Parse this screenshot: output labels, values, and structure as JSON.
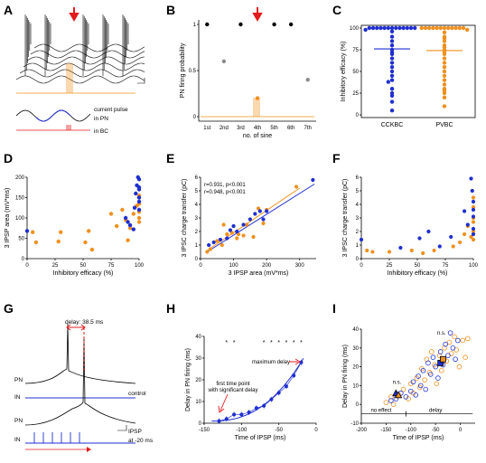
{
  "colors": {
    "blue": "#1f2fd0",
    "orange": "#f0901e",
    "red": "#e31a1c",
    "gray": "#8c8c8c",
    "black": "#000000"
  },
  "panels": {
    "A": "A",
    "B": "B",
    "C": "C",
    "D": "D",
    "E": "E",
    "F": "F",
    "G": "G",
    "H": "H",
    "I": "I"
  },
  "panelA": {
    "label_current": "current pulse",
    "label_pn": "in PN",
    "label_bc": "in BC"
  },
  "panelG": {
    "delay_label": "delay: 38.5 ms",
    "pn1": "PN",
    "in1": "IN",
    "control": "control",
    "pn2": "PN",
    "in2": "IN",
    "ipsp": "IPSP",
    "ipsp_time": "at -20 ms"
  },
  "chart_data": [
    {
      "id": "B",
      "type": "scatter",
      "ylabel": "PN firing probability",
      "xlabel": "no. of sine",
      "categories": [
        "1st",
        "2nd",
        "3rd",
        "4th",
        "5th",
        "6th",
        "7th"
      ],
      "values": [
        1.0,
        0.6,
        1.0,
        0.2,
        1.0,
        1.0,
        0.4
      ],
      "ylim": [
        0,
        1
      ],
      "yticks": [
        "0",
        "0.5",
        "1"
      ]
    },
    {
      "id": "C",
      "type": "scatter",
      "ylabel": "Inhibitory efficacy (%)",
      "categories": [
        "CCKBC",
        "PVBC"
      ],
      "ylim": [
        0,
        100
      ],
      "yticks": [
        "0",
        "25",
        "50",
        "75",
        "100"
      ],
      "series": [
        {
          "name": "CCKBC",
          "mean": 76,
          "values": [
            100,
            100,
            100,
            100,
            100,
            100,
            100,
            100,
            100,
            100,
            100,
            100,
            100,
            98,
            96,
            90,
            85,
            80,
            75,
            72,
            70,
            65,
            60,
            55,
            50,
            45,
            40,
            38,
            30,
            25,
            22,
            15,
            5
          ]
        },
        {
          "name": "PVBC",
          "mean": 74,
          "values": [
            100,
            100,
            100,
            100,
            100,
            100,
            100,
            100,
            100,
            100,
            100,
            100,
            98,
            95,
            90,
            88,
            85,
            80,
            78,
            75,
            72,
            70,
            65,
            60,
            55,
            50,
            45,
            40,
            35,
            30,
            28,
            25,
            20,
            10
          ]
        }
      ]
    },
    {
      "id": "D",
      "type": "scatter",
      "ylabel": "3 IPSP area (mV*ms)",
      "xlabel": "Inhibitory efficacy (%)",
      "xlim": [
        0,
        100
      ],
      "ylim": [
        0,
        200
      ],
      "xticks": [
        "0",
        "25",
        "50",
        "75",
        "100"
      ],
      "yticks": [
        "0",
        "50",
        "100",
        "150",
        "200"
      ],
      "series": [
        {
          "name": "CCKBC",
          "points": [
            [
              0,
              68
            ],
            [
              88,
              100
            ],
            [
              90,
              90
            ],
            [
              92,
              82
            ],
            [
              95,
              72
            ],
            [
              96,
              125
            ],
            [
              97,
              160
            ],
            [
              98,
              180
            ],
            [
              99,
              200
            ],
            [
              100,
              170
            ],
            [
              100,
              150
            ],
            [
              100,
              140
            ],
            [
              100,
              120
            ],
            [
              100,
              195
            ],
            [
              100,
              175
            ]
          ]
        },
        {
          "name": "PVBC",
          "points": [
            [
              5,
              65
            ],
            [
              8,
              40
            ],
            [
              28,
              42
            ],
            [
              30,
              65
            ],
            [
              52,
              40
            ],
            [
              55,
              68
            ],
            [
              58,
              22
            ],
            [
              75,
              110
            ],
            [
              80,
              80
            ],
            [
              85,
              120
            ],
            [
              88,
              95
            ],
            [
              90,
              45
            ],
            [
              92,
              75
            ],
            [
              95,
              110
            ],
            [
              98,
              130
            ],
            [
              100,
              115
            ],
            [
              100,
              100
            ],
            [
              100,
              135
            ],
            [
              100,
              150
            ],
            [
              100,
              90
            ],
            [
              100,
              155
            ]
          ]
        }
      ]
    },
    {
      "id": "E",
      "type": "scatter",
      "ylabel": "3 IPSC charge transfer (pC)",
      "xlabel": "3 IPSP area (mV*ms)",
      "xlim": [
        0,
        350
      ],
      "ylim": [
        0,
        6
      ],
      "xticks": [
        "0",
        "100",
        "200",
        "300"
      ],
      "yticks": [
        "0",
        "1",
        "2",
        "3",
        "4",
        "5",
        "6"
      ],
      "annotations": [
        "r=0.931, p<0.001",
        "r=0.948, p<0.001"
      ],
      "series": [
        {
          "name": "CCKBC",
          "points": [
            [
              25,
              1.0
            ],
            [
              40,
              1.2
            ],
            [
              60,
              1.4
            ],
            [
              80,
              1.5
            ],
            [
              90,
              2.1
            ],
            [
              100,
              2.4
            ],
            [
              110,
              2.0
            ],
            [
              130,
              2.5
            ],
            [
              150,
              2.9
            ],
            [
              165,
              3.3
            ],
            [
              180,
              3.5
            ],
            [
              190,
              2.9
            ],
            [
              200,
              3.5
            ],
            [
              340,
              5.8
            ]
          ]
        },
        {
          "name": "PVBC",
          "points": [
            [
              20,
              0.5
            ],
            [
              30,
              0.7
            ],
            [
              50,
              1.3
            ],
            [
              65,
              1.0
            ],
            [
              70,
              2.5
            ],
            [
              80,
              1.8
            ],
            [
              95,
              1.9
            ],
            [
              110,
              1.5
            ],
            [
              115,
              1.8
            ],
            [
              130,
              1.7
            ],
            [
              140,
              2.5
            ],
            [
              160,
              1.6
            ],
            [
              175,
              3.7
            ],
            [
              190,
              2.6
            ],
            [
              200,
              3.6
            ],
            [
              290,
              5.3
            ]
          ]
        }
      ],
      "fits": [
        {
          "name": "CCKBC",
          "x": [
            20,
            345
          ],
          "y": [
            0.5,
            5.5
          ]
        },
        {
          "name": "PVBC",
          "x": [
            20,
            300
          ],
          "y": [
            0.6,
            5.2
          ]
        }
      ]
    },
    {
      "id": "F",
      "type": "scatter",
      "ylabel": "3 IPSC charge transfer (pC)",
      "xlabel": "Inhibitory efficacy (%)",
      "xlim": [
        0,
        100
      ],
      "ylim": [
        0,
        6
      ],
      "xticks": [
        "0",
        "25",
        "50",
        "75",
        "100"
      ],
      "yticks": [
        "0",
        "1",
        "2",
        "3",
        "4",
        "5",
        "6"
      ],
      "series": [
        {
          "name": "CCKBC",
          "points": [
            [
              0,
              1.4
            ],
            [
              35,
              0.8
            ],
            [
              52,
              1.5
            ],
            [
              60,
              2.0
            ],
            [
              70,
              0.9
            ],
            [
              80,
              1.6
            ],
            [
              92,
              3.5
            ],
            [
              95,
              2.5
            ],
            [
              98,
              5.9
            ],
            [
              99,
              5.0
            ],
            [
              100,
              4.2
            ],
            [
              100,
              3.6
            ],
            [
              100,
              2.2
            ],
            [
              100,
              1.8
            ],
            [
              100,
              3.1
            ]
          ]
        },
        {
          "name": "PVBC",
          "points": [
            [
              5,
              0.6
            ],
            [
              10,
              0.5
            ],
            [
              25,
              0.5
            ],
            [
              45,
              0.6
            ],
            [
              55,
              0.4
            ],
            [
              65,
              0.6
            ],
            [
              82,
              0.9
            ],
            [
              88,
              1.2
            ],
            [
              92,
              1.8
            ],
            [
              95,
              2.4
            ],
            [
              98,
              1.6
            ],
            [
              100,
              3.8
            ],
            [
              100,
              3.0
            ],
            [
              100,
              2.7
            ],
            [
              100,
              1.4
            ],
            [
              100,
              4.5
            ],
            [
              100,
              2.0
            ]
          ]
        }
      ]
    },
    {
      "id": "H",
      "type": "line",
      "ylabel": "Delay in PN firing (ms)",
      "xlabel": "Time of IPSP (ms)",
      "xlim": [
        -150,
        0
      ],
      "ylim": [
        0,
        40
      ],
      "xticks": [
        "-150",
        "-100",
        "-50",
        "0"
      ],
      "yticks": [
        "0",
        "10",
        "20",
        "30",
        "40"
      ],
      "annotations": [
        "first time point with significant delay",
        "maximum delay"
      ],
      "x": [
        -130,
        -120,
        -110,
        -100,
        -90,
        -80,
        -70,
        -60,
        -50,
        -40,
        -30,
        -20
      ],
      "values": [
        1,
        2,
        4,
        4,
        5,
        7,
        8,
        11,
        14,
        17,
        22,
        28
      ],
      "significance_x": [
        -120,
        -110,
        -70,
        -60,
        -50,
        -40,
        -30,
        -20
      ]
    },
    {
      "id": "I",
      "type": "scatter",
      "ylabel": "Delay in PN firing (ms)",
      "xlabel": "Time of IPSP (ms)",
      "xlim": [
        -200,
        30
      ],
      "ylim": [
        -10,
        40
      ],
      "xticks": [
        "-200",
        "-150",
        "-100",
        "-50",
        "0"
      ],
      "yticks": [
        "-10",
        "0",
        "10",
        "20",
        "30",
        "40"
      ],
      "annotations": [
        "n.s.",
        "n.s.",
        "no effect",
        "delay"
      ],
      "series": [
        {
          "name": "CCKBC",
          "points": [
            [
              -140,
              2
            ],
            [
              -130,
              3
            ],
            [
              -120,
              6
            ],
            [
              -110,
              4
            ],
            [
              -100,
              7
            ],
            [
              -95,
              12
            ],
            [
              -90,
              5
            ],
            [
              -85,
              15
            ],
            [
              -80,
              10
            ],
            [
              -75,
              18
            ],
            [
              -70,
              8
            ],
            [
              -65,
              22
            ],
            [
              -60,
              16
            ],
            [
              -55,
              25
            ],
            [
              -50,
              20
            ],
            [
              -45,
              14
            ],
            [
              -40,
              28
            ],
            [
              -35,
              21
            ],
            [
              -30,
              32
            ],
            [
              -25,
              26
            ],
            [
              -20,
              38
            ],
            [
              -15,
              30
            ],
            [
              -10,
              24
            ],
            [
              -5,
              34
            ]
          ]
        },
        {
          "name": "PVBC",
          "points": [
            [
              -150,
              1
            ],
            [
              -140,
              4
            ],
            [
              -135,
              0
            ],
            [
              -125,
              5
            ],
            [
              -115,
              8
            ],
            [
              -105,
              3
            ],
            [
              -100,
              11
            ],
            [
              -95,
              6
            ],
            [
              -88,
              14
            ],
            [
              -82,
              9
            ],
            [
              -78,
              19
            ],
            [
              -72,
              13
            ],
            [
              -68,
              24
            ],
            [
              -62,
              17
            ],
            [
              -58,
              28
            ],
            [
              -52,
              21
            ],
            [
              -48,
              11
            ],
            [
              -42,
              26
            ],
            [
              -38,
              18
            ],
            [
              -32,
              30
            ],
            [
              -28,
              23
            ],
            [
              -22,
              33
            ],
            [
              -18,
              27
            ],
            [
              -12,
              36
            ],
            [
              -8,
              29
            ],
            [
              -2,
              20
            ],
            [
              5,
              34
            ],
            [
              10,
              25
            ],
            [
              15,
              35
            ]
          ]
        }
      ]
    }
  ]
}
